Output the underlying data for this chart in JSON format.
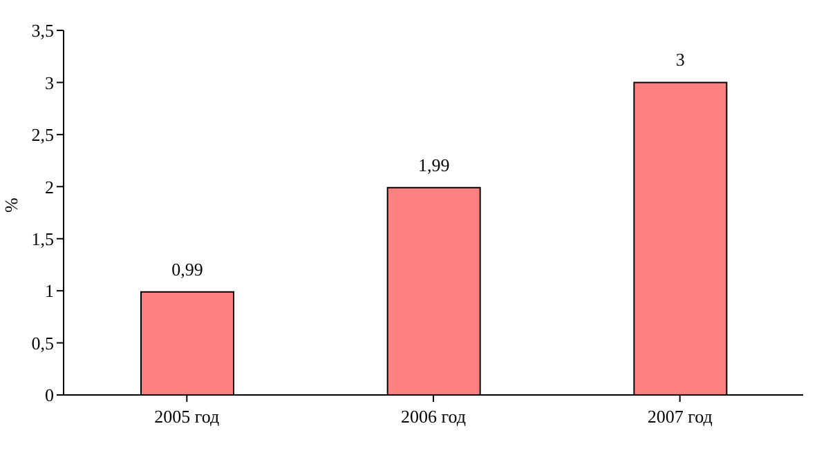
{
  "chart_data": {
    "type": "bar",
    "ylabel": "%",
    "categories": [
      "2005 год",
      "2006 год",
      "2007 год"
    ],
    "values": [
      0.99,
      1.99,
      3
    ],
    "value_labels": [
      "0,99",
      "1,99",
      "3"
    ],
    "color": "#ff8080",
    "ylim": [
      0,
      3.5
    ],
    "yticks": [
      0,
      {
        "value": 0.5,
        "label": "0,5"
      },
      1,
      {
        "value": 1.5,
        "label": "1,5"
      },
      2,
      {
        "value": 2.5,
        "label": "2,5"
      },
      3,
      {
        "value": 3.5,
        "label": "3,5"
      }
    ]
  }
}
